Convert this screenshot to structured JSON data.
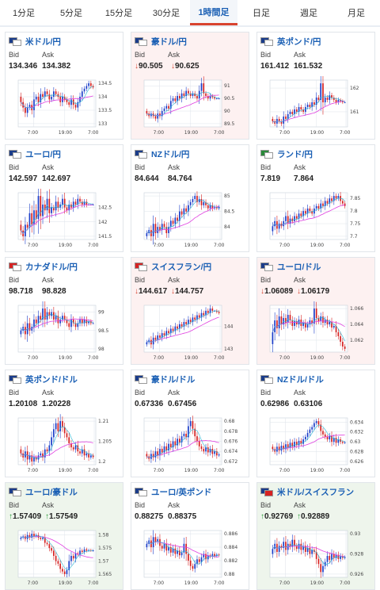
{
  "tabs": [
    {
      "label": "1分足"
    },
    {
      "label": "5分足"
    },
    {
      "label": "15分足"
    },
    {
      "label": "30分足"
    },
    {
      "label": "1時間足",
      "active": true
    },
    {
      "label": "日足"
    },
    {
      "label": "週足"
    },
    {
      "label": "月足"
    }
  ],
  "labels": {
    "bid": "Bid",
    "ask": "Ask"
  },
  "colors": {
    "bull": "#1d3fc9",
    "bear": "#d62222",
    "ma_magenta": "#e040e0",
    "ma_cyan": "#29b6d3",
    "grid": "#dde3ea",
    "down_bg": "#fdf1f1",
    "up_bg": "#eef5ec"
  },
  "cards": [
    {
      "pair": "米ドル/円",
      "bid": "134.346",
      "ask": "134.382",
      "trend": "none",
      "flags": [
        "#1a3c8a",
        "#ffffff"
      ],
      "chart_data": {
        "type": "candlestick",
        "yticks": [
          "134.5",
          "134",
          "133.5",
          "133"
        ],
        "xticks": [
          "7:00",
          "19:00",
          "7:00"
        ],
        "close": [
          133.8,
          133.6,
          133.4,
          133.6,
          133.7,
          133.5,
          133.9,
          134.0,
          133.8,
          134.1,
          134.0,
          134.2,
          134.1,
          133.9,
          134.0,
          134.2,
          134.1,
          134.0,
          133.8,
          134.0,
          133.9,
          133.8,
          133.7,
          133.9,
          133.7,
          133.6,
          133.8,
          134.0,
          134.2,
          134.3,
          134.4,
          134.5,
          134.4,
          134.35
        ]
      }
    },
    {
      "pair": "豪ドル/円",
      "bid": "90.505",
      "ask": "90.625",
      "trend": "down",
      "flags": [
        "#1a3c8a",
        "#ffffff"
      ],
      "chart_data": {
        "type": "candlestick",
        "yticks": [
          "91",
          "90.5",
          "90",
          "89.5"
        ],
        "xticks": [
          "7:00",
          "19:00",
          "7:00"
        ],
        "close": [
          89.9,
          89.8,
          89.9,
          89.8,
          89.7,
          89.9,
          89.8,
          90.0,
          90.1,
          90.2,
          90.1,
          90.4,
          90.5,
          90.4,
          90.6,
          90.5,
          90.7,
          90.6,
          90.8,
          90.7,
          90.6,
          90.7,
          90.6,
          90.5,
          90.8,
          91.1,
          90.7,
          90.6,
          90.5,
          90.6,
          90.55,
          90.5,
          90.5,
          90.5
        ]
      }
    },
    {
      "pair": "英ポンド/円",
      "bid": "161.412",
      "ask": "161.532",
      "trend": "none",
      "flags": [
        "#1a3c8a",
        "#ffffff"
      ],
      "chart_data": {
        "type": "candlestick",
        "yticks": [
          "162",
          "161"
        ],
        "xticks": [
          "7:00",
          "19:00",
          "7:00"
        ],
        "close": [
          160.6,
          160.5,
          160.7,
          160.6,
          160.5,
          160.8,
          160.7,
          160.9,
          161.0,
          160.9,
          161.1,
          161.0,
          161.2,
          161.1,
          161.0,
          161.2,
          161.3,
          161.2,
          161.4,
          161.3,
          161.6,
          161.5,
          162.2,
          161.4,
          161.6,
          161.5,
          161.7,
          161.6,
          161.5,
          161.4,
          161.5,
          161.45,
          161.4,
          161.4
        ]
      }
    },
    {
      "pair": "ユーロ/円",
      "bid": "142.597",
      "ask": "142.697",
      "trend": "none",
      "flags": [
        "#1a3c8a",
        "#ffffff"
      ],
      "chart_data": {
        "type": "candlestick",
        "yticks": [
          "142.5",
          "142",
          "141.5"
        ],
        "xticks": [
          "7:00",
          "19:00",
          "7:00"
        ],
        "close": [
          141.7,
          141.5,
          141.9,
          141.8,
          142.3,
          141.9,
          142.4,
          142.1,
          142.9,
          142.2,
          142.6,
          142.4,
          142.8,
          142.3,
          142.5,
          142.4,
          142.7,
          142.5,
          142.6,
          142.8,
          142.5,
          142.4,
          142.6,
          142.5,
          142.7,
          142.6,
          142.8,
          142.7,
          142.6,
          142.7,
          142.6,
          142.6,
          142.6,
          142.6
        ]
      }
    },
    {
      "pair": "NZドル/円",
      "bid": "84.644",
      "ask": "84.764",
      "trend": "none",
      "flags": [
        "#1a3c8a",
        "#ffffff"
      ],
      "chart_data": {
        "type": "candlestick",
        "yticks": [
          "85",
          "84.5",
          "84"
        ],
        "xticks": [
          "7:00",
          "19:00",
          "7:00"
        ],
        "close": [
          83.8,
          83.9,
          83.7,
          84.1,
          83.8,
          84.0,
          83.9,
          84.1,
          84.0,
          83.8,
          84.0,
          84.2,
          84.1,
          84.3,
          84.2,
          84.5,
          84.4,
          84.6,
          84.5,
          84.7,
          84.8,
          84.9,
          85.0,
          84.8,
          84.9,
          84.7,
          84.8,
          84.7,
          84.6,
          84.7,
          84.6,
          84.65,
          84.6,
          84.65
        ]
      }
    },
    {
      "pair": "ランド/円",
      "bid": "7.819",
      "ask": "7.864",
      "trend": "none",
      "flags": [
        "#2a8a3a",
        "#ffffff"
      ],
      "chart_data": {
        "type": "candlestick",
        "yticks": [
          "7.85",
          "7.8",
          "7.75",
          "7.7"
        ],
        "xticks": [
          "7:00",
          "19:00",
          "7:00"
        ],
        "close": [
          7.74,
          7.76,
          7.73,
          7.75,
          7.74,
          7.76,
          7.78,
          7.75,
          7.77,
          7.76,
          7.78,
          7.77,
          7.79,
          7.78,
          7.8,
          7.79,
          7.81,
          7.8,
          7.79,
          7.81,
          7.82,
          7.81,
          7.83,
          7.82,
          7.84,
          7.83,
          7.85,
          7.84,
          7.86,
          7.85,
          7.86,
          7.84,
          7.83,
          7.82
        ]
      }
    },
    {
      "pair": "カナダドル/円",
      "bid": "98.718",
      "ask": "98.828",
      "trend": "none",
      "flags": [
        "#d62222",
        "#ffffff"
      ],
      "chart_data": {
        "type": "candlestick",
        "yticks": [
          "99",
          "98.5",
          "98"
        ],
        "xticks": [
          "7:00",
          "19:00",
          "7:00"
        ],
        "close": [
          98.5,
          98.6,
          98.4,
          98.7,
          98.5,
          98.6,
          98.8,
          98.7,
          98.9,
          98.8,
          99.1,
          98.8,
          99.0,
          98.9,
          99.0,
          98.8,
          98.9,
          98.7,
          98.8,
          98.9,
          98.8,
          98.7,
          98.6,
          98.8,
          98.7,
          98.6,
          98.7,
          98.8,
          98.7,
          98.8,
          98.7,
          98.75,
          98.7,
          98.7
        ]
      }
    },
    {
      "pair": "スイスフラン/円",
      "bid": "144.617",
      "ask": "144.757",
      "trend": "down",
      "flags": [
        "#d62222",
        "#ffffff"
      ],
      "chart_data": {
        "type": "candlestick",
        "yticks": [
          "144",
          "143"
        ],
        "xticks": [
          "7:00",
          "19:00",
          "7:00"
        ],
        "close": [
          143.3,
          143.4,
          143.2,
          143.5,
          143.4,
          143.6,
          143.5,
          143.7,
          143.6,
          143.8,
          143.7,
          143.9,
          143.8,
          144.0,
          143.9,
          144.1,
          144.0,
          144.2,
          144.1,
          144.3,
          144.2,
          144.4,
          144.3,
          144.5,
          144.4,
          144.6,
          144.5,
          144.7,
          144.6,
          144.8,
          144.7,
          144.7,
          144.65,
          144.6
        ]
      }
    },
    {
      "pair": "ユーロ/ドル",
      "bid": "1.06089",
      "ask": "1.06179",
      "trend": "down",
      "flags": [
        "#1a3c8a",
        "#ffffff"
      ],
      "chart_data": {
        "type": "candlestick",
        "yticks": [
          "1.066",
          "1.064",
          "1.062"
        ],
        "xticks": [
          "7:00",
          "19:00",
          "7:00"
        ],
        "close": [
          1.063,
          1.0645,
          1.0635,
          1.065,
          1.064,
          1.0648,
          1.0642,
          1.0652,
          1.0645,
          1.0638,
          1.0644,
          1.064,
          1.0646,
          1.0638,
          1.0642,
          1.0636,
          1.064,
          1.0645,
          1.0641,
          1.066,
          1.0648,
          1.0644,
          1.065,
          1.0642,
          1.0646,
          1.064,
          1.0643,
          1.0636,
          1.0638,
          1.063,
          1.0625,
          1.0618,
          1.0612,
          1.0609
        ]
      }
    },
    {
      "pair": "英ポンド/ドル",
      "bid": "1.20108",
      "ask": "1.20228",
      "trend": "none",
      "flags": [
        "#1a3c8a",
        "#ffffff"
      ],
      "chart_data": {
        "type": "candlestick",
        "yticks": [
          "1.21",
          "1.205",
          "1.2"
        ],
        "xticks": [
          "7:00",
          "19:00",
          "7:00"
        ],
        "close": [
          1.202,
          1.201,
          1.2025,
          1.2005,
          1.2015,
          1.2,
          1.201,
          1.2005,
          1.2015,
          1.202,
          1.201,
          1.203,
          1.2025,
          1.204,
          1.206,
          1.208,
          1.2095,
          1.2075,
          1.21,
          1.2085,
          1.207,
          1.206,
          1.2045,
          1.2035,
          1.203,
          1.204,
          1.2025,
          1.202,
          1.203,
          1.2015,
          1.202,
          1.201,
          1.2015,
          1.2011
        ]
      }
    },
    {
      "pair": "豪ドル/ドル",
      "bid": "0.67336",
      "ask": "0.67456",
      "trend": "none",
      "flags": [
        "#1a3c8a",
        "#ffffff"
      ],
      "chart_data": {
        "type": "candlestick",
        "yticks": [
          "0.68",
          "0.678",
          "0.676",
          "0.674",
          "0.672"
        ],
        "xticks": [
          "7:00",
          "19:00",
          "7:00"
        ],
        "close": [
          0.673,
          0.6725,
          0.6735,
          0.6728,
          0.674,
          0.6732,
          0.6745,
          0.6738,
          0.675,
          0.6742,
          0.6755,
          0.6748,
          0.676,
          0.6752,
          0.6765,
          0.6758,
          0.677,
          0.6775,
          0.6768,
          0.679,
          0.68,
          0.6785,
          0.677,
          0.676,
          0.675,
          0.6745,
          0.674,
          0.6748,
          0.6738,
          0.6745,
          0.6735,
          0.674,
          0.6732,
          0.6734
        ]
      }
    },
    {
      "pair": "NZドル/ドル",
      "bid": "0.62986",
      "ask": "0.63106",
      "trend": "none",
      "flags": [
        "#1a3c8a",
        "#ffffff"
      ],
      "chart_data": {
        "type": "candlestick",
        "yticks": [
          "0.634",
          "0.632",
          "0.63",
          "0.628",
          "0.626"
        ],
        "xticks": [
          "7:00",
          "19:00",
          "7:00"
        ],
        "close": [
          0.6285,
          0.628,
          0.629,
          0.6282,
          0.6292,
          0.6285,
          0.6295,
          0.6288,
          0.6298,
          0.629,
          0.63,
          0.6293,
          0.6302,
          0.6296,
          0.6305,
          0.631,
          0.6318,
          0.6325,
          0.633,
          0.6338,
          0.6342,
          0.6335,
          0.6322,
          0.6315,
          0.631,
          0.6305,
          0.6312,
          0.63,
          0.6308,
          0.6298,
          0.6305,
          0.63,
          0.6298,
          0.6299
        ]
      }
    },
    {
      "pair": "ユーロ/豪ドル",
      "bid": "1.57409",
      "ask": "1.57549",
      "trend": "up",
      "flags": [
        "#1a3c8a",
        "#ffffff"
      ],
      "chart_data": {
        "type": "candlestick",
        "yticks": [
          "1.58",
          "1.575",
          "1.57",
          "1.565"
        ],
        "xticks": [
          "7:00",
          "19:00",
          "7:00"
        ],
        "close": [
          1.579,
          1.5795,
          1.5785,
          1.58,
          1.579,
          1.5805,
          1.5795,
          1.58,
          1.579,
          1.5785,
          1.579,
          1.577,
          1.5765,
          1.575,
          1.574,
          1.572,
          1.57,
          1.569,
          1.567,
          1.566,
          1.565,
          1.5665,
          1.57,
          1.572,
          1.571,
          1.573,
          1.5725,
          1.574,
          1.5735,
          1.5745,
          1.574,
          1.5742,
          1.574,
          1.5741
        ]
      }
    },
    {
      "pair": "ユーロ/英ポンド",
      "bid": "0.88275",
      "ask": "0.88375",
      "trend": "none",
      "flags": [
        "#1a3c8a",
        "#ffffff"
      ],
      "chart_data": {
        "type": "candlestick",
        "yticks": [
          "0.886",
          "0.884",
          "0.882",
          "0.88"
        ],
        "xticks": [
          "7:00",
          "19:00",
          "7:00"
        ],
        "close": [
          0.8845,
          0.885,
          0.884,
          0.8855,
          0.8848,
          0.8852,
          0.8842,
          0.8838,
          0.8845,
          0.8835,
          0.884,
          0.8832,
          0.8838,
          0.883,
          0.8835,
          0.8828,
          0.8832,
          0.8845,
          0.883,
          0.882,
          0.8812,
          0.8808,
          0.8815,
          0.8822,
          0.8818,
          0.8825,
          0.883,
          0.8822,
          0.8828,
          0.8826,
          0.883,
          0.8827,
          0.8829,
          0.8828
        ]
      }
    },
    {
      "pair": "米ドル/スイスフラン",
      "bid": "0.92769",
      "ask": "0.92889",
      "trend": "up",
      "flags": [
        "#1a3c8a",
        "#d62222"
      ],
      "chart_data": {
        "type": "candlestick",
        "yticks": [
          "0.93",
          "0.928",
          "0.926"
        ],
        "xticks": [
          "7:00",
          "19:00",
          "7:00"
        ],
        "close": [
          0.9285,
          0.929,
          0.9282,
          0.9288,
          0.9286,
          0.9292,
          0.9284,
          0.929,
          0.9287,
          0.9294,
          0.9288,
          0.9285,
          0.929,
          0.9284,
          0.9288,
          0.9282,
          0.9286,
          0.928,
          0.9284,
          0.9282,
          0.9275,
          0.927,
          0.9262,
          0.9268,
          0.9272,
          0.9278,
          0.9274,
          0.928,
          0.9276,
          0.9279,
          0.9275,
          0.9278,
          0.9276,
          0.9277
        ]
      }
    }
  ]
}
